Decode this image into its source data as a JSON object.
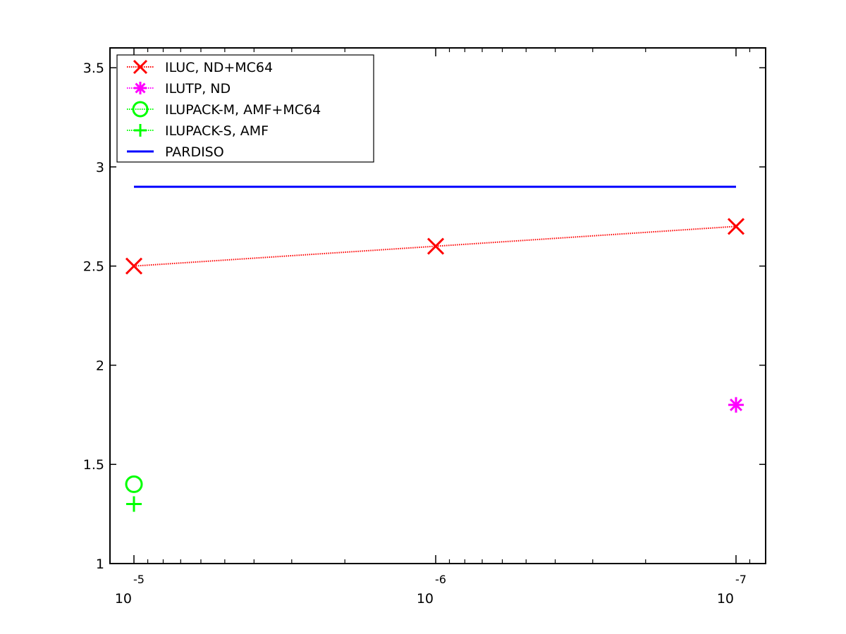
{
  "chart_data": {
    "type": "line",
    "title": "",
    "xlabel": "",
    "ylabel": "",
    "x_scale": "log-reversed",
    "x": [
      1e-05,
      1e-06,
      1e-07
    ],
    "x_tick_labels": [
      {
        "base": "10",
        "exp": "-5"
      },
      {
        "base": "10",
        "exp": "-6"
      },
      {
        "base": "10",
        "exp": "-7"
      }
    ],
    "ylim": [
      1,
      3.6
    ],
    "y_ticks": [
      1,
      1.5,
      2,
      2.5,
      3,
      3.5
    ],
    "y_tick_labels": [
      "1",
      "1.5",
      "2",
      "2.5",
      "3",
      "3.5"
    ],
    "grid": false,
    "legend_position": "top-left",
    "series": [
      {
        "name": "ILUC,  ND+MC64",
        "values": [
          2.5,
          2.6,
          2.7
        ],
        "color": "#ff0000",
        "marker": "x",
        "line": "dotted"
      },
      {
        "name": "ILUTP,  ND",
        "values": [
          null,
          null,
          1.8
        ],
        "color": "#ff00ff",
        "marker": "asterisk",
        "line": "dotted"
      },
      {
        "name": "ILUPACK-M, AMF+MC64",
        "values": [
          1.4,
          null,
          null
        ],
        "color": "#00ff00",
        "marker": "circle",
        "line": "dotted"
      },
      {
        "name": "ILUPACK-S, AMF",
        "values": [
          1.3,
          null,
          null
        ],
        "color": "#00ff00",
        "marker": "plus",
        "line": "dotted"
      },
      {
        "name": "PARDISO",
        "values": [
          2.9,
          2.9,
          2.9
        ],
        "color": "#0000ff",
        "marker": "none",
        "line": "solid"
      }
    ]
  }
}
